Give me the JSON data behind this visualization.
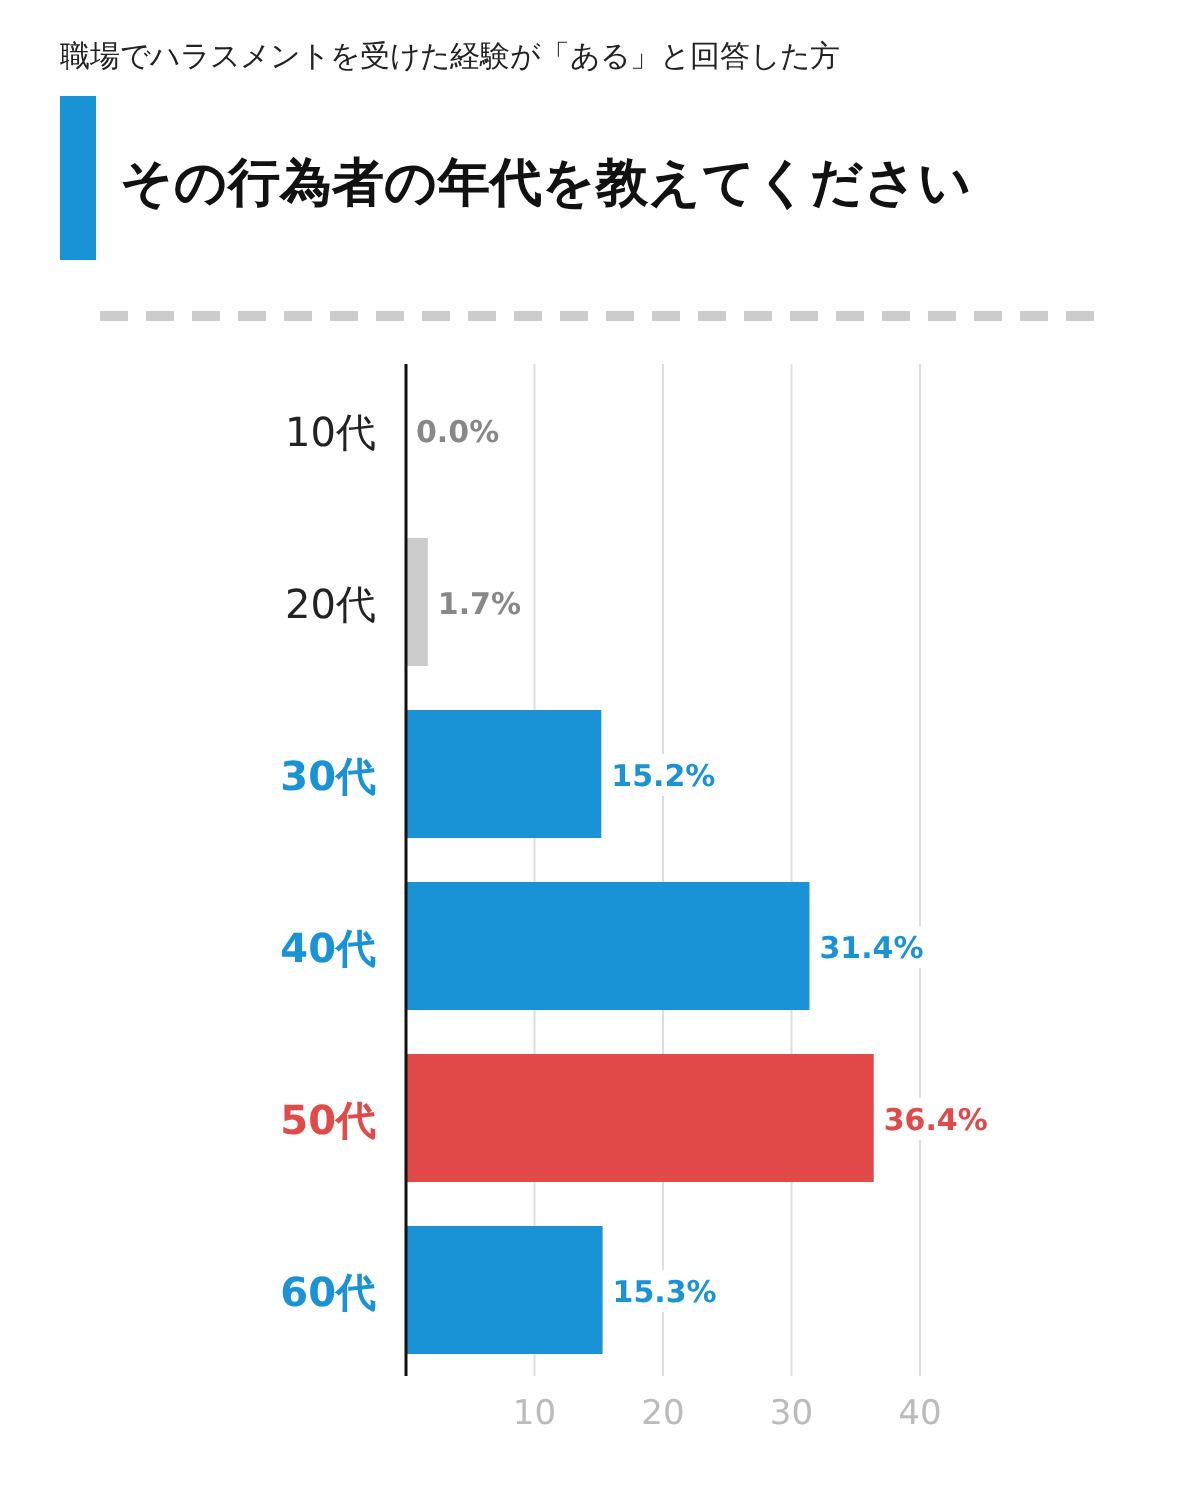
{
  "chart_data": {
    "type": "bar",
    "orientation": "horizontal",
    "subtitle": "職場でハラスメントを受けた経験が「ある」と回答した方",
    "title": "その行為者の年代を教えてください",
    "categories": [
      "10代",
      "20代",
      "30代",
      "40代",
      "50代",
      "60代"
    ],
    "values": [
      0.0,
      1.7,
      15.2,
      31.4,
      36.4,
      15.3
    ],
    "colors": [
      "#cccccc",
      "#cccccc",
      "#1a93d6",
      "#1a93d6",
      "#e24a4a",
      "#1a93d6"
    ],
    "value_labels": [
      "0.0%",
      "1.7%",
      "15.2%",
      "31.4%",
      "36.4%",
      "15.3%"
    ],
    "xlim": [
      0,
      40
    ],
    "xticks": [
      10,
      20,
      30,
      40
    ],
    "grid": "x"
  }
}
